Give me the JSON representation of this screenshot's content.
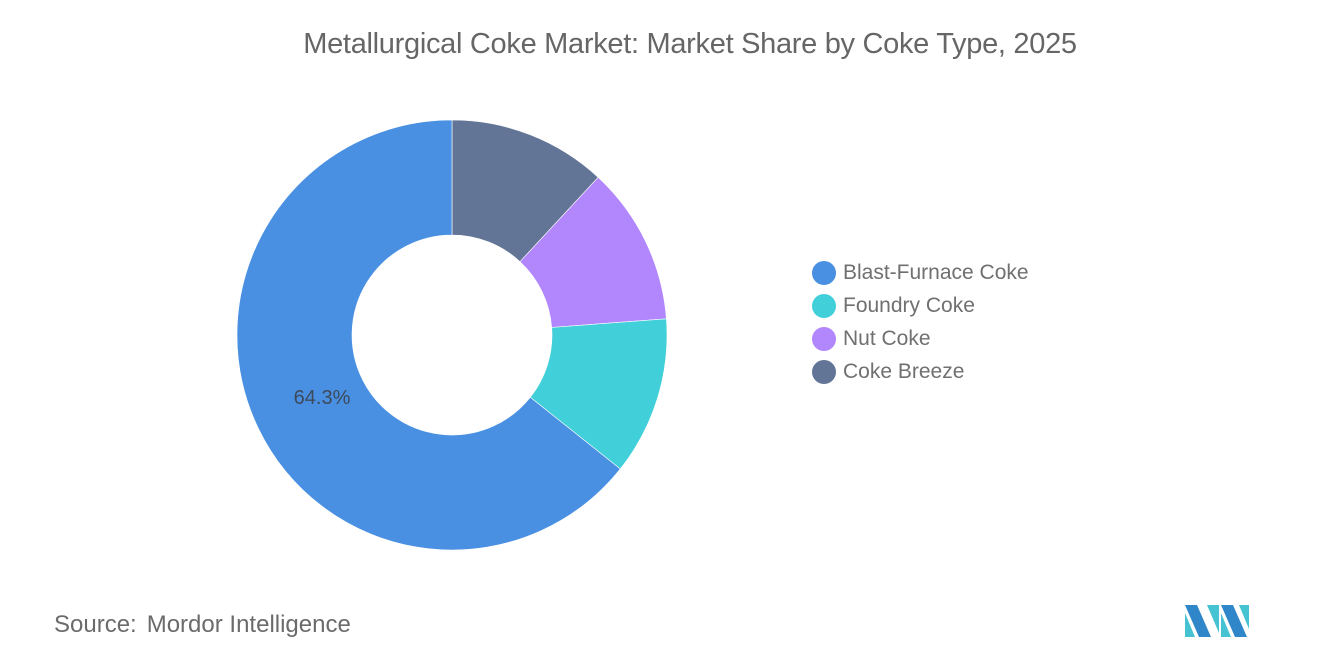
{
  "header": {
    "title": "Metallurgical Coke Market: Market Share by Coke Type, 2025"
  },
  "footer": {
    "source_label": "Source:",
    "source_value": "Mordor Intelligence"
  },
  "colors": {
    "blast_furnace_coke": "#4a90e2",
    "foundry_coke": "#41cfd9",
    "nut_coke": "#b286fd",
    "coke_breeze": "#637596",
    "logo_dark": "#2f86c8",
    "logo_light": "#45c3d2"
  },
  "legend": [
    {
      "label": "Blast-Furnace Coke",
      "color": "#4a90e2"
    },
    {
      "label": "Foundry Coke",
      "color": "#41cfd9"
    },
    {
      "label": "Nut Coke",
      "color": "#b286fd"
    },
    {
      "label": "Coke Breeze",
      "color": "#637596"
    }
  ],
  "chart_data": {
    "type": "pie",
    "subtype": "donut",
    "title": "Metallurgical Coke Market: Market Share by Coke Type, 2025",
    "categories": [
      "Blast-Furnace Coke",
      "Foundry Coke",
      "Nut Coke",
      "Coke Breeze"
    ],
    "values": [
      64.3,
      11.9,
      11.9,
      11.9
    ],
    "unit": "%",
    "data_labels": [
      {
        "category": "Blast-Furnace Coke",
        "text": "64.3%"
      }
    ],
    "legend_position": "right",
    "source": "Mordor Intelligence"
  }
}
